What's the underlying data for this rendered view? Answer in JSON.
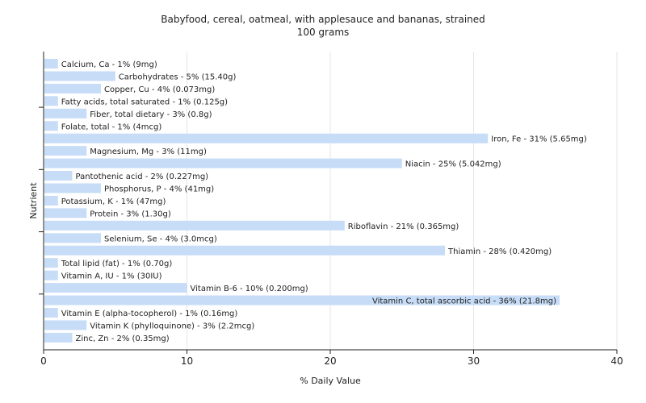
{
  "chart_data": {
    "type": "bar",
    "orientation": "horizontal",
    "title": "Babyfood, cereal, oatmeal, with applesauce and bananas, strained",
    "subtitle": "100 grams",
    "xlabel": "% Daily Value",
    "ylabel": "Nutrient",
    "xlim": [
      0,
      40
    ],
    "xticks": [
      "0",
      "10",
      "20",
      "30",
      "40"
    ],
    "grid": true,
    "bar_color": "#c6dcf7",
    "categories": [
      "Calcium, Ca",
      "Carbohydrates",
      "Copper, Cu",
      "Fatty acids, total saturated",
      "Fiber, total dietary",
      "Folate, total",
      "Iron, Fe",
      "Magnesium, Mg",
      "Niacin",
      "Pantothenic acid",
      "Phosphorus, P",
      "Potassium, K",
      "Protein",
      "Riboflavin",
      "Selenium, Se",
      "Thiamin",
      "Total lipid (fat)",
      "Vitamin A, IU",
      "Vitamin B-6",
      "Vitamin C, total ascorbic acid",
      "Vitamin E (alpha-tocopherol)",
      "Vitamin K (phylloquinone)",
      "Zinc, Zn"
    ],
    "values": [
      1,
      5,
      4,
      1,
      3,
      1,
      31,
      3,
      25,
      2,
      4,
      1,
      3,
      21,
      4,
      28,
      1,
      1,
      10,
      36,
      1,
      3,
      2
    ],
    "labels": [
      "Calcium, Ca - 1% (9mg)",
      "Carbohydrates - 5% (15.40g)",
      "Copper, Cu - 4% (0.073mg)",
      "Fatty acids, total saturated - 1% (0.125g)",
      "Fiber, total dietary - 3% (0.8g)",
      "Folate, total - 1% (4mcg)",
      "Iron, Fe - 31% (5.65mg)",
      "Magnesium, Mg - 3% (11mg)",
      "Niacin - 25% (5.042mg)",
      "Pantothenic acid - 2% (0.227mg)",
      "Phosphorus, P - 4% (41mg)",
      "Potassium, K - 1% (47mg)",
      "Protein - 3% (1.30g)",
      "Riboflavin - 21% (0.365mg)",
      "Selenium, Se - 4% (3.0mcg)",
      "Thiamin - 28% (0.420mg)",
      "Total lipid (fat) - 1% (0.70g)",
      "Vitamin A, IU - 1% (30IU)",
      "Vitamin B-6 - 10% (0.200mg)",
      "Vitamin C, total ascorbic acid - 36% (21.8mg)",
      "Vitamin E (alpha-tocopherol) - 1% (0.16mg)",
      "Vitamin K (phylloquinone) - 3% (2.2mcg)",
      "Zinc, Zn - 2% (0.35mg)"
    ]
  }
}
